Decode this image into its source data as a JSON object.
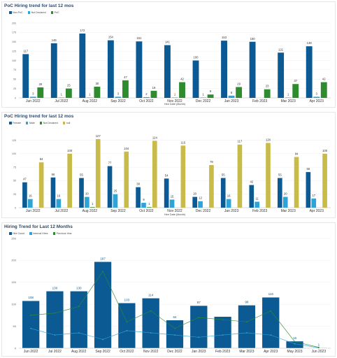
{
  "chart_data": [
    {
      "type": "bar",
      "title": "PoC Hiring trend for last 12 mos",
      "xlabel": "Hire Date (Month)",
      "ylabel": "",
      "ylim": [
        0,
        200
      ],
      "yticks": [
        0,
        25,
        50,
        75,
        100,
        125,
        150,
        175,
        200
      ],
      "categories": [
        "Jun 2022",
        "Jul 2022",
        "Aug 2022",
        "Sep 2022",
        "Oct 2022",
        "Nov 2022",
        "Dec 2022",
        "Jan 2023",
        "Feb 2023",
        "Mar 2023",
        "Apr 2023"
      ],
      "series": [
        {
          "name": "Non PoC",
          "color": "#0b5a93",
          "values": [
            117,
            146,
            172,
            154,
            151,
            141,
            100,
            153,
            150,
            121,
            138
          ]
        },
        {
          "name": "Not Declared",
          "color": "#2ea3d8",
          "values": [
            3,
            1,
            1,
            3,
            2,
            1,
            1,
            6,
            null,
            1,
            3
          ]
        },
        {
          "name": "PoC",
          "color": "#2e8b2e",
          "values": [
            28,
            25,
            30,
            47,
            19,
            42,
            9,
            29,
            23,
            37,
            42
          ]
        }
      ],
      "grid": true,
      "legend": "top-left"
    },
    {
      "type": "bar",
      "title": "PoC Hiring trend for last 12 mos",
      "xlabel": "Hire Date (Month)",
      "ylabel": "",
      "ylim": [
        0,
        140
      ],
      "yticks": [
        0,
        25,
        50,
        75,
        100,
        125
      ],
      "categories": [
        "Jun 2022",
        "Jul 2022",
        "Aug 2022",
        "Sep 2022",
        "Oct 2022",
        "Nov 2022",
        "Dec 2022",
        "Jan 2023",
        "Feb 2023",
        "Mar 2023",
        "Apr 2023"
      ],
      "series": [
        {
          "name": "Female",
          "color": "#0b5a93",
          "values": [
            47,
            56,
            55,
            77,
            38,
            54,
            20,
            55,
            42,
            55,
            66
          ]
        },
        {
          "name": "Male",
          "color": "#2ea3d8",
          "values": [
            16,
            16,
            20,
            25,
            9,
            15,
            12,
            16,
            11,
            20,
            17
          ]
        },
        {
          "name": "Not Declared",
          "color": "#2e8b2e",
          "values": [
            null,
            null,
            1,
            null,
            1,
            null,
            null,
            null,
            null,
            null,
            null
          ]
        },
        {
          "name": "null",
          "color": "#c8bb4a",
          "values": [
            84,
            100,
            127,
            104,
            124,
            115,
            79,
            117,
            120,
            94,
            100
          ]
        }
      ],
      "grid": true,
      "legend": "top-left"
    },
    {
      "type": "bar",
      "title": "Hiring Trend for Last 12 Months",
      "xlabel": "",
      "ylabel": "",
      "ylim": [
        0,
        250
      ],
      "yticks": [
        0,
        50,
        100,
        150,
        200,
        250
      ],
      "categories": [
        "Jun 2022",
        "Jul 2022",
        "Aug 2022",
        "Sep 2022",
        "Oct 2022",
        "Nov 2022",
        "Dec 2022",
        "Jan 2023",
        "Feb 2023",
        "Mar 2023",
        "Apr 2023",
        "May 2023",
        "Jun 2023"
      ],
      "series": [
        {
          "name": "Hire Count",
          "color": "#0b5a93",
          "kind": "bar",
          "values": [
            108,
            130,
            130,
            197,
            103,
            114,
            64,
            97,
            72,
            98,
            116,
            16,
            1
          ]
        },
        {
          "name": "Internal Hires",
          "color": "#2ea3d8",
          "kind": "line",
          "values": [
            45,
            30,
            35,
            20,
            40,
            35,
            30,
            25,
            30,
            35,
            30,
            10,
            1
          ]
        },
        {
          "name": "Previous Year",
          "color": "#2e8b2e",
          "kind": "line",
          "values": [
            75,
            80,
            95,
            175,
            60,
            85,
            45,
            70,
            65,
            60,
            85,
            15,
            2
          ]
        }
      ],
      "data_labels": [
        108,
        130,
        130,
        197,
        103,
        114,
        64,
        97,
        null,
        98,
        116,
        16,
        1
      ],
      "grid": true,
      "legend": "top-left"
    }
  ]
}
